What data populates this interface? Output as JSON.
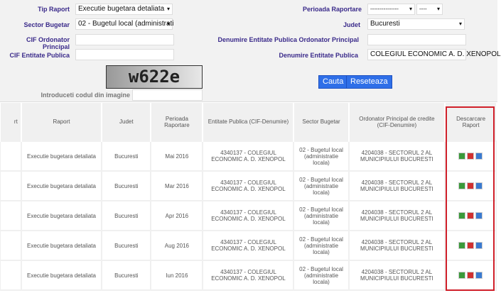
{
  "form": {
    "tip_raport_label": "Tip Raport",
    "tip_raport_value": "Executie bugetara detaliata",
    "sector_label": "Sector Bugetar",
    "sector_value": "02 - Bugetul local (administrati",
    "cif_ord_label": "CIF Ordonator Principal",
    "cif_ord_value": "",
    "cif_ent_label": "CIF Entitate Publica",
    "cif_ent_value": "",
    "perioada_label": "Perioada Raportare",
    "perioada_month": "---------------",
    "perioada_year": "----",
    "judet_label": "Judet",
    "judet_value": "Bucuresti",
    "den_ord_label": "Denumire Entitate Publica Ordonator Principal",
    "den_ord_value": "",
    "den_ent_label": "Denumire Entitate Publica",
    "den_ent_value": "COLEGIUL ECONOMIC A. D. XENOPOL",
    "captcha_text": "w622e",
    "captcha_label": "Introduceti codul din imagine",
    "captcha_value": "",
    "search_label": "Cauta",
    "reset_label": "Reseteaza"
  },
  "table": {
    "headers": [
      "rt",
      "Raport",
      "Judet",
      "Perioada Raportare",
      "Entitate Publica (CIF-Denumire)",
      "Sector Bugetar",
      "Ordonator Principal de credite (CIF-Denumire)",
      "Descarcare Raport"
    ],
    "rows": [
      {
        "raport": "Executie bugetara detaliata",
        "judet": "Bucuresti",
        "perioada": "Mai 2016",
        "entitate": "4340137 - COLEGIUL ECONOMIC A. D. XENOPOL",
        "sector": "02 - Bugetul local (administratie locala)",
        "ordonator": "4204038 - SECTORUL 2 AL MUNICIPIULUI BUCURESTI"
      },
      {
        "raport": "Executie bugetara detaliata",
        "judet": "Bucuresti",
        "perioada": "Mar 2016",
        "entitate": "4340137 - COLEGIUL ECONOMIC A. D. XENOPOL",
        "sector": "02 - Bugetul local (administratie locala)",
        "ordonator": "4204038 - SECTORUL 2 AL MUNICIPIULUI BUCURESTI"
      },
      {
        "raport": "Executie bugetara detaliata",
        "judet": "Bucuresti",
        "perioada": "Apr 2016",
        "entitate": "4340137 - COLEGIUL ECONOMIC A. D. XENOPOL",
        "sector": "02 - Bugetul local (administratie locala)",
        "ordonator": "4204038 - SECTORUL 2 AL MUNICIPIULUI BUCURESTI"
      },
      {
        "raport": "Executie bugetara detaliata",
        "judet": "Bucuresti",
        "perioada": "Aug 2016",
        "entitate": "4340137 - COLEGIUL ECONOMIC A. D. XENOPOL",
        "sector": "02 - Bugetul local (administratie locala)",
        "ordonator": "4204038 - SECTORUL 2 AL MUNICIPIULUI BUCURESTI"
      },
      {
        "raport": "Executie bugetara detaliata",
        "judet": "Bucuresti",
        "perioada": "Iun 2016",
        "entitate": "4340137 - COLEGIUL ECONOMIC A. D. XENOPOL",
        "sector": "02 - Bugetul local (administratie locala)",
        "ordonator": "4204038 - SECTORUL 2 AL MUNICIPIULUI BUCURESTI"
      }
    ],
    "download_icons": [
      "excel-icon",
      "pdf-icon",
      "xml-icon"
    ]
  },
  "colors": {
    "label": "#3a2a8a",
    "button": "#2f6fe8",
    "highlight": "#d0202a"
  }
}
